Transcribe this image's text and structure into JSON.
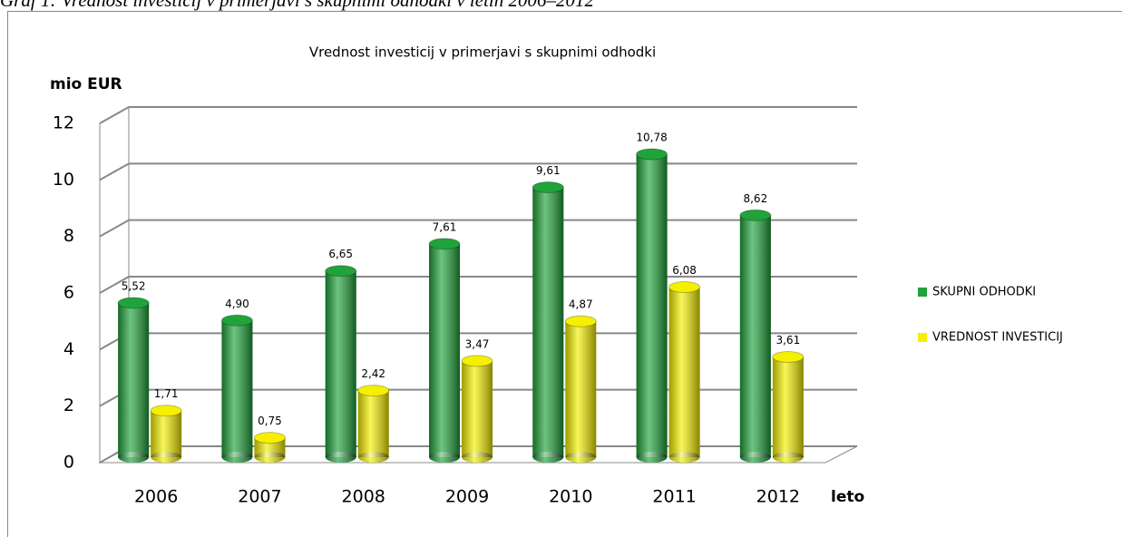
{
  "caption": "Graf 1: Vrednost investicij v primerjavi s skupnimi odhodki v letih 2006–2012",
  "chart_data": {
    "type": "bar",
    "title": "Vrednost investicij v primerjavi s skupnimi odhodki",
    "y_label": "mio EUR",
    "x_label": "leto",
    "categories": [
      "2006",
      "2007",
      "2008",
      "2009",
      "2010",
      "2011",
      "2012"
    ],
    "series": [
      {
        "name": "SKUPNI ODHODKI",
        "color": "#1fa33a",
        "values": [
          5.52,
          4.9,
          6.65,
          7.61,
          9.61,
          10.78,
          8.62
        ],
        "value_labels": [
          "5,52",
          "4,90",
          "6,65",
          "7,61",
          "9,61",
          "10,78",
          "8,62"
        ]
      },
      {
        "name": "VREDNOST INVESTICIJ",
        "color": "#f5f000",
        "values": [
          1.71,
          0.75,
          2.42,
          3.47,
          4.87,
          6.08,
          3.61
        ],
        "value_labels": [
          "1,71",
          "0,75",
          "2,42",
          "3,47",
          "4,87",
          "6,08",
          "3,61"
        ]
      }
    ],
    "ylim": [
      0,
      12
    ],
    "yticks": [
      0,
      2,
      4,
      6,
      8,
      10,
      12
    ],
    "grid": true,
    "legend": "right"
  }
}
